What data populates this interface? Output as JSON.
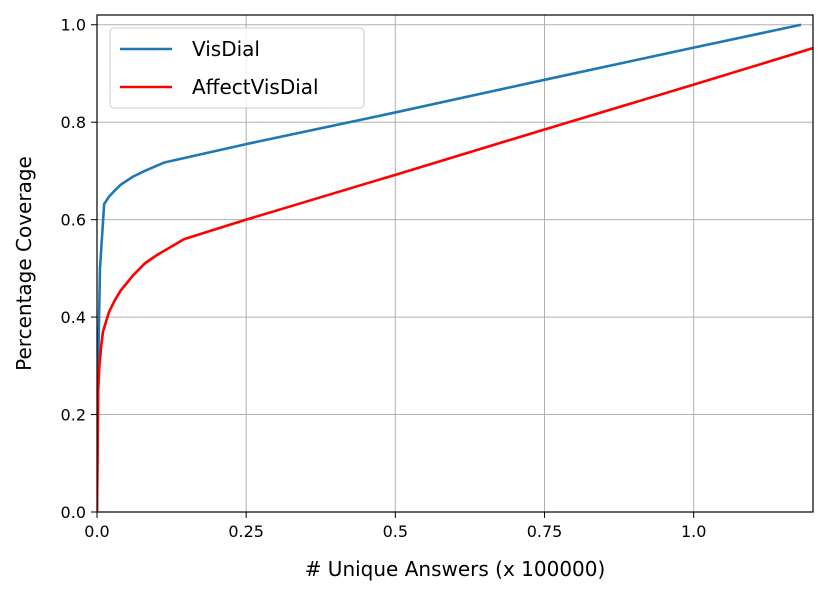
{
  "chart_data": {
    "type": "line",
    "xlabel": "# Unique Answers (x 100000)",
    "ylabel": "Percentage Coverage",
    "xlim": [
      0,
      1.2
    ],
    "ylim": [
      0,
      1.02
    ],
    "x_ticks": [
      0.0,
      0.25,
      0.5,
      0.75,
      1.0
    ],
    "x_tick_labels": [
      "0.0",
      "0.25",
      "0.5",
      "0.75",
      "1.0"
    ],
    "y_ticks": [
      0.0,
      0.2,
      0.4,
      0.6,
      0.8,
      1.0
    ],
    "y_tick_labels": [
      "0.0",
      "0.2",
      "0.4",
      "0.6",
      "0.8",
      "1.0"
    ],
    "grid": true,
    "legend_position": "top-left",
    "series": [
      {
        "name": "VisDial",
        "color": "#1f77b4",
        "x": [
          0.0,
          0.002,
          0.005,
          0.012,
          0.02,
          0.03,
          0.04,
          0.06,
          0.08,
          0.112,
          0.25,
          0.5,
          0.75,
          1.0,
          1.18
        ],
        "y": [
          0.0,
          0.3,
          0.5,
          0.632,
          0.647,
          0.66,
          0.672,
          0.688,
          0.7,
          0.717,
          0.755,
          0.82,
          0.887,
          0.953,
          1.0
        ]
      },
      {
        "name": "AffectVisDial",
        "color": "#ff0000",
        "x": [
          0.0,
          0.002,
          0.004,
          0.007,
          0.01,
          0.015,
          0.02,
          0.03,
          0.04,
          0.06,
          0.08,
          0.1,
          0.146,
          0.25,
          0.5,
          0.75,
          1.0,
          1.2
        ],
        "y": [
          0.0,
          0.25,
          0.3,
          0.34,
          0.37,
          0.39,
          0.41,
          0.435,
          0.455,
          0.485,
          0.51,
          0.527,
          0.56,
          0.6,
          0.692,
          0.785,
          0.877,
          0.952
        ]
      }
    ]
  }
}
